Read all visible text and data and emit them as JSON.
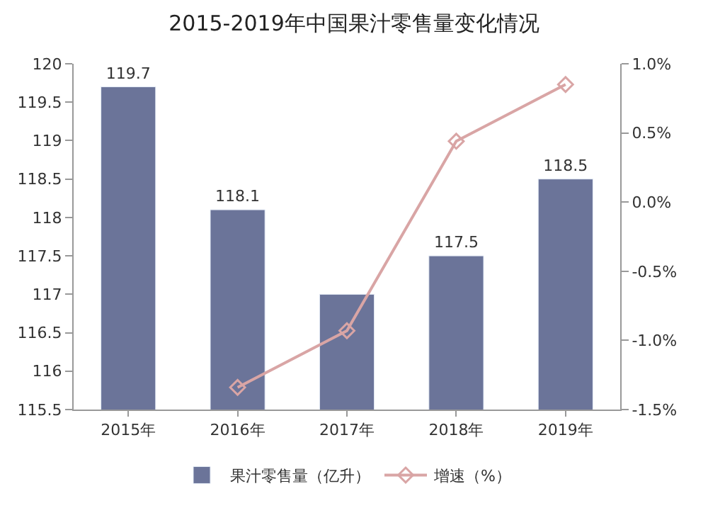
{
  "chart_data": {
    "type": "bar",
    "title": "2015-2019年中国果汁零售量变化情况",
    "categories": [
      "2015年",
      "2016年",
      "2017年",
      "2018年",
      "2019年"
    ],
    "series": [
      {
        "name": "果汁零售量（亿升）",
        "color": "#6b7499",
        "values": [
          119.7,
          118.1,
          117.0,
          117.5,
          118.5
        ],
        "value_labels": [
          "119.7",
          "118.1",
          null,
          "117.5",
          "118.5"
        ]
      },
      {
        "name": "增速（%）",
        "type": "line",
        "axis": "y2",
        "color": "#d9a5a5",
        "marker": "diamond",
        "line_style": "solid",
        "values": [
          null,
          -1.34,
          -0.93,
          0.44,
          0.85
        ]
      }
    ],
    "ylim": [
      115.5,
      120
    ],
    "yticks": [
      115.5,
      116,
      116.5,
      117,
      117.5,
      118,
      118.5,
      119,
      119.5,
      120
    ],
    "y2lim": [
      -1.5,
      1.0
    ],
    "y2ticks": [
      {
        "value": -1.5,
        "label": "-1.5%"
      },
      {
        "value": -1.0,
        "label": "-1.0%"
      },
      {
        "value": -0.5,
        "label": "-0.5%"
      },
      {
        "value": 0.0,
        "label": "0.0%"
      },
      {
        "value": 0.5,
        "label": "0.5%"
      },
      {
        "value": 1.0,
        "label": "1.0%"
      }
    ],
    "grid": false,
    "legend": "bottom"
  }
}
